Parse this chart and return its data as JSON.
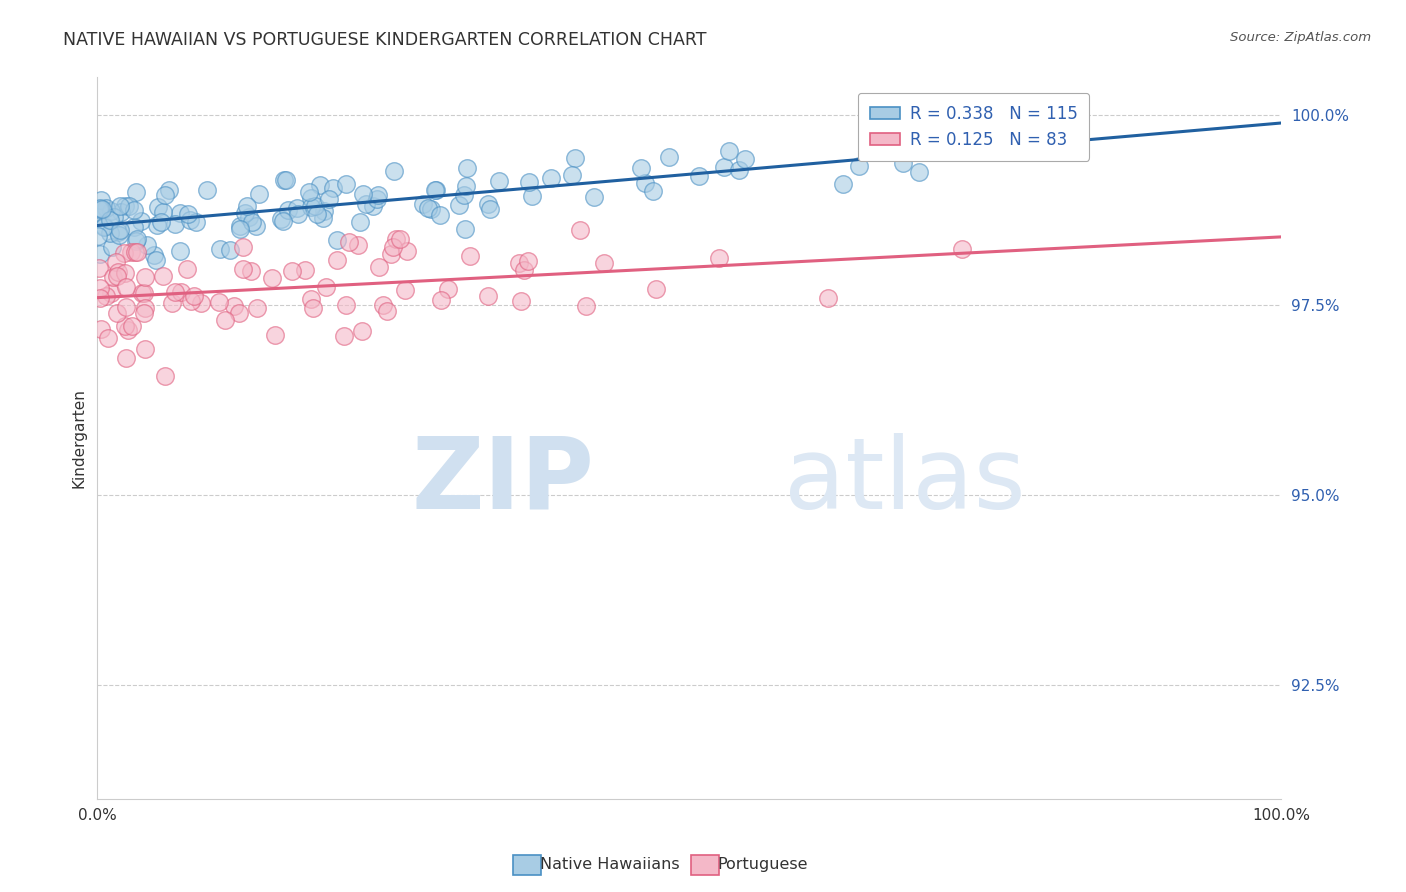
{
  "title": "NATIVE HAWAIIAN VS PORTUGUESE KINDERGARTEN CORRELATION CHART",
  "source": "Source: ZipAtlas.com",
  "ylabel": "Kindergarten",
  "xlim": [
    0.0,
    1.0
  ],
  "ylim": [
    0.91,
    1.005
  ],
  "yticks": [
    0.925,
    0.95,
    0.975,
    1.0
  ],
  "ytick_labels": [
    "92.5%",
    "95.0%",
    "97.5%",
    "100.0%"
  ],
  "xticks": [
    0.0,
    0.1,
    0.2,
    0.3,
    0.4,
    0.5,
    0.6,
    0.7,
    0.8,
    0.9,
    1.0
  ],
  "xtick_labels": [
    "0.0%",
    "",
    "",
    "",
    "",
    "",
    "",
    "",
    "",
    "",
    "100.0%"
  ],
  "blue_R": 0.338,
  "blue_N": 115,
  "pink_R": 0.125,
  "pink_N": 83,
  "blue_color": "#a8cce4",
  "pink_color": "#f4b8c8",
  "blue_edge_color": "#4a90c4",
  "pink_edge_color": "#e06080",
  "blue_line_color": "#2060a0",
  "pink_line_color": "#e06080",
  "background_color": "#ffffff",
  "grid_color": "#cccccc",
  "title_color": "#333333",
  "legend_label_blue": "Native Hawaiians",
  "legend_label_pink": "Portuguese",
  "watermark_zip": "ZIP",
  "watermark_atlas": "atlas",
  "watermark_color": "#d0e0f0",
  "blue_line_start_y": 0.9855,
  "blue_line_end_y": 0.999,
  "pink_line_start_y": 0.976,
  "pink_line_end_y": 0.984
}
